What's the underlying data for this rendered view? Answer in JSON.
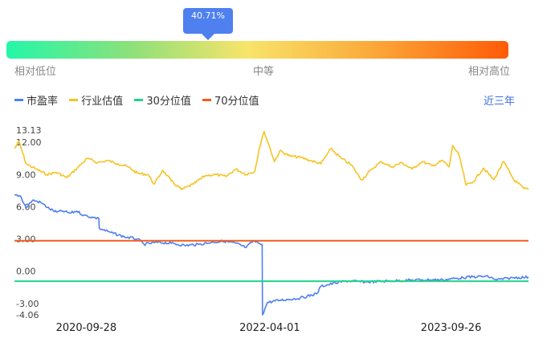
{
  "gauge": {
    "percentile_label": "40.71%",
    "percentile": 0.4071,
    "low_label": "相对低位",
    "mid_label": "中等",
    "high_label": "相对高位"
  },
  "legend": {
    "pe": "市盈率",
    "industry": "行业估值",
    "p30": "30分位值",
    "p70": "70分位值"
  },
  "range_button": "近三年",
  "colors": {
    "pe": "#4f7ff0",
    "industry": "#f6c324",
    "p30": "#22d48a",
    "p70": "#f45b1c",
    "tooltip": "#4e80f0"
  },
  "chart_data": {
    "type": "line",
    "y_ticks": [
      "13.13",
      "12.00",
      "9.00",
      "6.00",
      "3.00",
      "0.00",
      "-3.00",
      "-4.06"
    ],
    "ylim": [
      -4.06,
      13.13
    ],
    "x_ticks": [
      "2020-09-28",
      "2022-04-01",
      "2023-09-26"
    ],
    "xlim": [
      "2020-02-26",
      "2024-05-15"
    ],
    "series": [
      {
        "name": "市盈率",
        "key": "pe",
        "points": [
          [
            "2020-02-26",
            7.1
          ],
          [
            "2020-03-15",
            7.0
          ],
          [
            "2020-04-01",
            5.9
          ],
          [
            "2020-04-20",
            6.6
          ],
          [
            "2020-05-15",
            6.4
          ],
          [
            "2020-06-10",
            5.8
          ],
          [
            "2020-07-01",
            5.5
          ],
          [
            "2020-07-20",
            5.6
          ],
          [
            "2020-08-10",
            5.4
          ],
          [
            "2020-08-31",
            5.6
          ],
          [
            "2020-09-20",
            5.2
          ],
          [
            "2020-10-20",
            5.0
          ],
          [
            "2020-11-05",
            4.9
          ],
          [
            "2020-11-06",
            4.0
          ],
          [
            "2020-12-10",
            3.6
          ],
          [
            "2021-01-20",
            3.2
          ],
          [
            "2021-03-01",
            3.0
          ],
          [
            "2021-03-20",
            2.5
          ],
          [
            "2021-05-01",
            2.7
          ],
          [
            "2021-06-10",
            2.6
          ],
          [
            "2021-07-20",
            2.4
          ],
          [
            "2021-09-01",
            2.5
          ],
          [
            "2021-10-10",
            2.7
          ],
          [
            "2021-11-15",
            2.8
          ],
          [
            "2021-12-20",
            2.6
          ],
          [
            "2022-01-20",
            2.2
          ],
          [
            "2022-02-10",
            2.8
          ],
          [
            "2022-03-01",
            2.6
          ],
          [
            "2022-03-09",
            2.5
          ],
          [
            "2022-03-10",
            -4.06
          ],
          [
            "2022-03-25",
            -2.9
          ],
          [
            "2022-05-01",
            -2.7
          ],
          [
            "2022-07-01",
            -2.5
          ],
          [
            "2022-08-20",
            -2.1
          ],
          [
            "2022-09-01",
            -1.4
          ],
          [
            "2022-10-15",
            -1.1
          ],
          [
            "2022-11-15",
            -0.9
          ],
          [
            "2023-01-15",
            -1.0
          ],
          [
            "2023-04-01",
            -0.9
          ],
          [
            "2023-07-01",
            -0.8
          ],
          [
            "2023-09-01",
            -0.8
          ],
          [
            "2023-11-01",
            -0.6
          ],
          [
            "2023-12-15",
            -0.5
          ],
          [
            "2024-01-15",
            -0.5
          ],
          [
            "2024-02-10",
            -0.8
          ],
          [
            "2024-04-01",
            -0.6
          ],
          [
            "2024-05-15",
            -0.55
          ]
        ]
      },
      {
        "name": "行业估值",
        "key": "industry",
        "points": [
          [
            "2020-02-26",
            11.4
          ],
          [
            "2020-03-10",
            12.1
          ],
          [
            "2020-04-01",
            10.0
          ],
          [
            "2020-05-01",
            9.5
          ],
          [
            "2020-06-01",
            9.0
          ],
          [
            "2020-07-01",
            9.2
          ],
          [
            "2020-08-01",
            8.7
          ],
          [
            "2020-09-01",
            9.6
          ],
          [
            "2020-10-01",
            10.5
          ],
          [
            "2020-11-01",
            10.1
          ],
          [
            "2020-12-01",
            10.3
          ],
          [
            "2021-01-01",
            10.0
          ],
          [
            "2021-02-01",
            9.7
          ],
          [
            "2021-03-01",
            9.1
          ],
          [
            "2021-04-01",
            9.0
          ],
          [
            "2021-04-20",
            8.1
          ],
          [
            "2021-05-15",
            9.4
          ],
          [
            "2021-06-10",
            8.4
          ],
          [
            "2021-07-10",
            7.6
          ],
          [
            "2021-08-15",
            8.1
          ],
          [
            "2021-09-20",
            8.9
          ],
          [
            "2021-10-20",
            9.0
          ],
          [
            "2021-11-20",
            8.8
          ],
          [
            "2021-12-20",
            9.5
          ],
          [
            "2022-01-20",
            9.0
          ],
          [
            "2022-02-15",
            9.3
          ],
          [
            "2022-03-01",
            11.5
          ],
          [
            "2022-03-15",
            13.0
          ],
          [
            "2022-04-01",
            11.5
          ],
          [
            "2022-04-15",
            10.2
          ],
          [
            "2022-05-01",
            11.2
          ],
          [
            "2022-06-01",
            10.7
          ],
          [
            "2022-07-01",
            10.6
          ],
          [
            "2022-08-01",
            10.3
          ],
          [
            "2022-09-01",
            10.0
          ],
          [
            "2022-10-01",
            11.4
          ],
          [
            "2022-11-01",
            10.5
          ],
          [
            "2022-12-01",
            9.9
          ],
          [
            "2023-01-01",
            8.5
          ],
          [
            "2023-02-01",
            9.5
          ],
          [
            "2023-03-01",
            10.2
          ],
          [
            "2023-04-01",
            9.7
          ],
          [
            "2023-05-01",
            10.1
          ],
          [
            "2023-06-01",
            9.5
          ],
          [
            "2023-07-01",
            10.2
          ],
          [
            "2023-08-01",
            9.8
          ],
          [
            "2023-09-01",
            10.3
          ],
          [
            "2023-09-20",
            9.7
          ],
          [
            "2023-10-01",
            11.7
          ],
          [
            "2023-10-20",
            10.8
          ],
          [
            "2023-11-10",
            8.0
          ],
          [
            "2023-12-01",
            8.3
          ],
          [
            "2024-01-01",
            9.6
          ],
          [
            "2024-02-01",
            8.5
          ],
          [
            "2024-03-01",
            10.2
          ],
          [
            "2024-04-01",
            8.5
          ],
          [
            "2024-05-01",
            7.7
          ],
          [
            "2024-05-15",
            7.6
          ]
        ]
      },
      {
        "name": "30分位值",
        "key": "p30",
        "points": [
          [
            "2020-02-26",
            -0.93
          ],
          [
            "2024-05-15",
            -0.93
          ]
        ]
      },
      {
        "name": "70分位值",
        "key": "p70",
        "points": [
          [
            "2020-02-26",
            2.83
          ],
          [
            "2024-05-15",
            2.83
          ]
        ]
      }
    ]
  }
}
